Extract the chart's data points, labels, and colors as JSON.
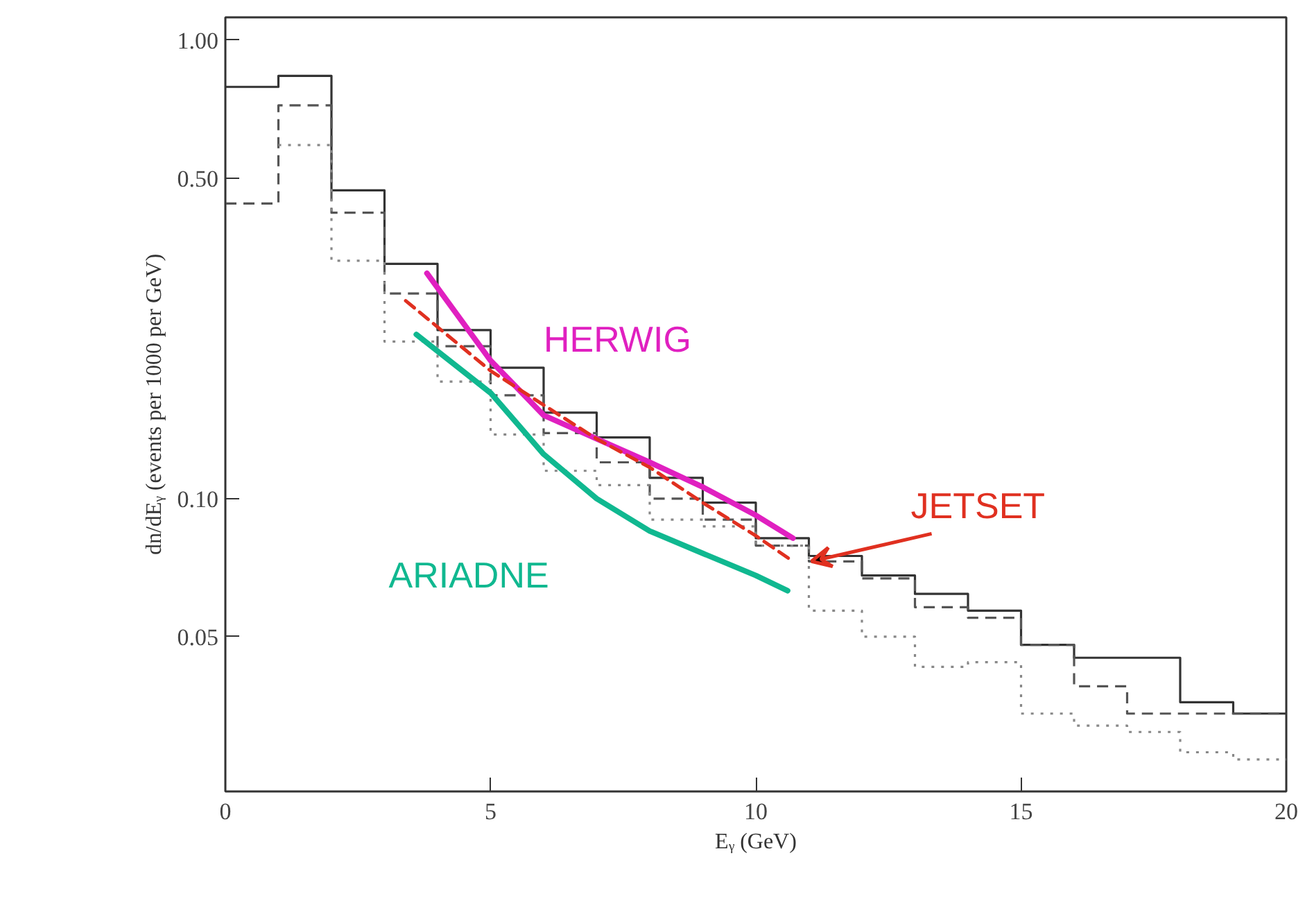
{
  "chart_data": {
    "type": "histogram",
    "xlabel": "Eᵧ (GeV)",
    "ylabel": "dn/dEᵧ (events per 1000 per GeV)",
    "bins": [
      0,
      1,
      2,
      3,
      4,
      5,
      6,
      7,
      8,
      9,
      10,
      11,
      12,
      13,
      14,
      15,
      16,
      17,
      18,
      19,
      20
    ],
    "series": [
      {
        "color": "#333333",
        "line_style": "solid",
        "values": [
          0.79,
          0.835,
          0.47,
          0.325,
          0.233,
          0.193,
          0.154,
          0.136,
          0.111,
          0.098,
          0.082,
          0.075,
          0.068,
          0.062,
          0.057,
          0.048,
          0.045,
          0.045,
          0.036,
          0.034
        ]
      },
      {
        "color": "#555555",
        "line_style": "dashed",
        "values": [
          0.44,
          0.72,
          0.42,
          0.28,
          0.215,
          0.168,
          0.139,
          0.12,
          0.1,
          0.09,
          0.079,
          0.073,
          0.067,
          0.058,
          0.055,
          0.048,
          0.039,
          0.034,
          0.034,
          0.034
        ]
      },
      {
        "color": "#888888",
        "line_style": "dotted",
        "bins": [
          1,
          2,
          3,
          4,
          5,
          6,
          7,
          8,
          9,
          10,
          11,
          12,
          13,
          14,
          15,
          16,
          17,
          18,
          19,
          20
        ],
        "values": [
          0.59,
          0.33,
          0.22,
          0.18,
          0.138,
          0.115,
          0.107,
          0.09,
          0.087,
          0.079,
          0.057,
          0.05,
          0.043,
          0.044,
          0.034,
          0.032,
          0.031,
          0.028,
          0.027
        ]
      },
      {
        "type": "line",
        "name": "HERWIG",
        "color": "#e020c0",
        "line_style": "solid",
        "x": [
          3.8,
          5,
          6,
          7,
          8,
          9,
          10,
          10.7
        ],
        "values": [
          0.31,
          0.2,
          0.152,
          0.135,
          0.12,
          0.106,
          0.092,
          0.082
        ]
      },
      {
        "type": "line",
        "name": "ARIADNE",
        "color": "#10b890",
        "line_style": "solid",
        "x": [
          3.6,
          5,
          6,
          7,
          8,
          9,
          10,
          10.6
        ],
        "values": [
          0.228,
          0.17,
          0.125,
          0.1,
          0.085,
          0.076,
          0.068,
          0.063
        ]
      },
      {
        "type": "line",
        "name": "JETSET",
        "color": "#e03020",
        "line_style": "dashed",
        "x": [
          3.4,
          5,
          6,
          7,
          8,
          9,
          10,
          10.7
        ],
        "values": [
          0.27,
          0.19,
          0.16,
          0.135,
          0.117,
          0.098,
          0.083,
          0.073
        ]
      }
    ],
    "xlim": [
      0,
      20
    ],
    "ylim": [
      0.023,
      1.12
    ],
    "log": true,
    "xticks": [
      0,
      5,
      10,
      15,
      20
    ],
    "yticks": [
      {
        "value": 0.05,
        "label": "0.05"
      },
      {
        "value": 0.1,
        "label": "0.10"
      },
      {
        "value": 0.5,
        "label": "0.50"
      },
      {
        "value": 1,
        "label": "1.00"
      }
    ],
    "grid": false
  }
}
